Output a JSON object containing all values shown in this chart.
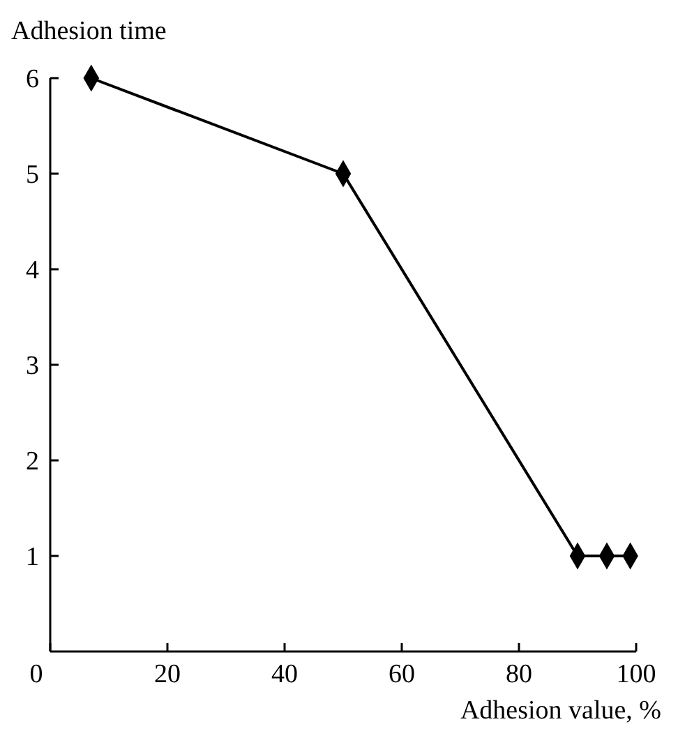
{
  "chart_data": {
    "type": "line",
    "ylabel": "Adhesion time",
    "xlabel": "Adhesion value, %",
    "x": [
      7,
      50,
      90,
      95,
      99
    ],
    "series": [
      {
        "color": "#000000",
        "values": [
          6,
          5,
          1,
          1,
          1
        ]
      }
    ],
    "xlim": [
      0,
      100
    ],
    "xticks": [
      0,
      20,
      40,
      60,
      80,
      100
    ],
    "ylim": [
      0,
      6
    ],
    "yticks": [
      1,
      2,
      3,
      4,
      5,
      6
    ],
    "marker": "diamond",
    "line_style": "solid"
  }
}
